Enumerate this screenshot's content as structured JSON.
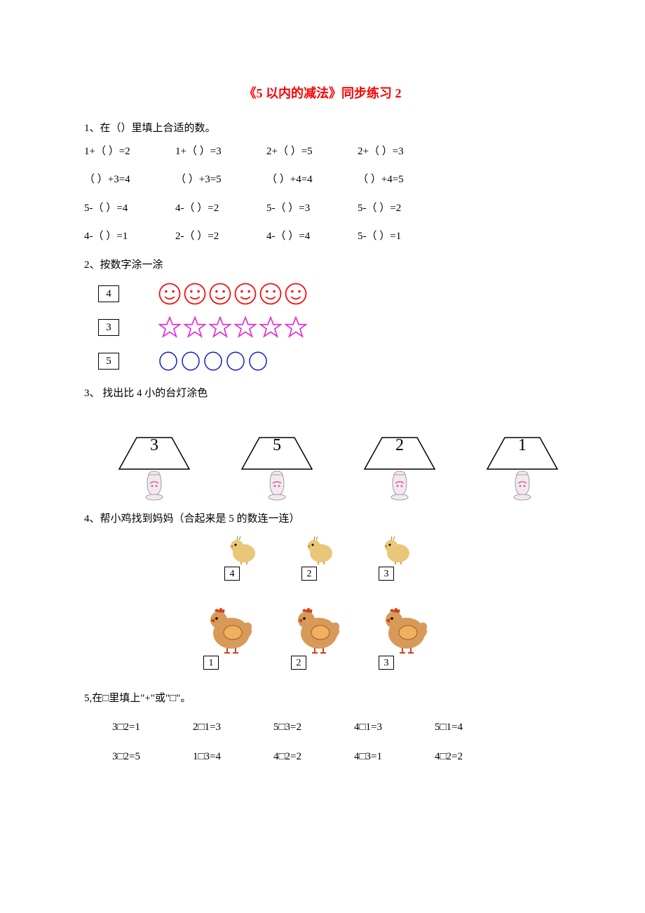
{
  "title": "《5 以内的减法》同步练习 2",
  "q1": {
    "label": "1、在（）里填上合适的数。",
    "rows": [
      [
        "1+（  ）=2",
        "1+（  ）=3",
        "2+（  ）=5",
        "2+（  ）=3"
      ],
      [
        "（  ）+3=4",
        "（  ）+3=5",
        "（  ）+4=4",
        "（  ）+4=5"
      ],
      [
        "5-（  ）=4",
        "4-（  ）=2",
        "5-（  ）=3",
        "5-（  ）=2"
      ],
      [
        "4-（  ）=1",
        "2-（  ）=2",
        "4-（  ）=4",
        "5-（  ）=1"
      ]
    ]
  },
  "q2": {
    "label": "2、按数字涂一涂",
    "rows": [
      {
        "num": "4",
        "kind": "smiley",
        "count": 6,
        "stroke": "#ff0000"
      },
      {
        "num": "3",
        "kind": "star",
        "count": 6,
        "stroke": "#e030d8"
      },
      {
        "num": "5",
        "kind": "ring",
        "count": 5,
        "stroke": "#1020c0"
      }
    ]
  },
  "q3": {
    "label": "3、 找出比 4 小的台灯涂色",
    "lamps": [
      "3",
      "5",
      "2",
      "1"
    ],
    "shade_stroke": "#000000",
    "vase_body": "#f4e8f0",
    "vase_accent": "#c86aa0"
  },
  "q4": {
    "label": "4、帮小鸡找到妈妈（合起来是 5 的数连一连）",
    "chicks": [
      "4",
      "2",
      "3"
    ],
    "hens": [
      "1",
      "2",
      "3"
    ],
    "chick_body": "#e8c878",
    "chick_beak": "#e08030",
    "hen_body": "#d89a58",
    "hen_comb": "#d04020",
    "hen_wing": "#f0b060"
  },
  "q5": {
    "label": "5,在□里填上\"+\"或\"□\"。",
    "rows": [
      [
        "3□2=1",
        "2□1=3",
        "5□3=2",
        "4□1=3",
        "5□1=4"
      ],
      [
        "3□2=5",
        "1□3=4",
        "4□2=2",
        "4□3=1",
        "4□2=2"
      ]
    ]
  },
  "colors": {
    "title": "#ff0000",
    "text": "#000000",
    "bg": "#ffffff"
  }
}
